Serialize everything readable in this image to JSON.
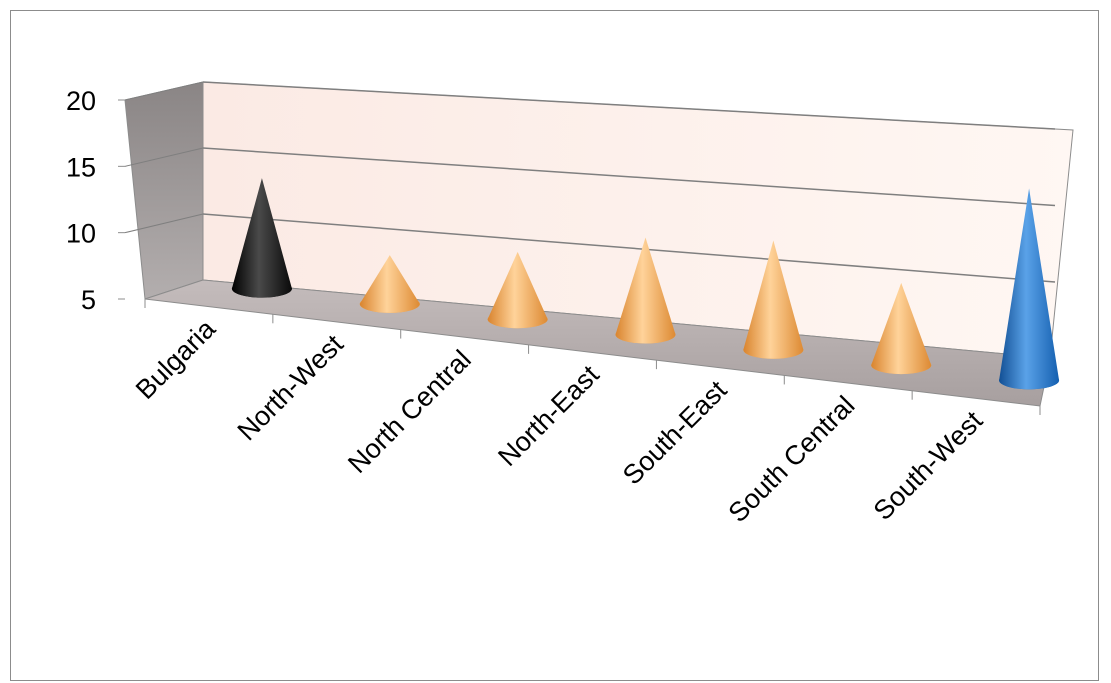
{
  "chart_data": {
    "type": "bar",
    "style": "3d-cone",
    "categories": [
      "Bulgaria",
      "North-West",
      "North Central",
      "North-East",
      "South-East",
      "South Central",
      "South-West"
    ],
    "values": [
      12.5,
      7.5,
      9,
      11.4,
      12.4,
      10.2,
      19.1
    ],
    "colors": [
      "#1a1a1a",
      "#f0a24a",
      "#f0a24a",
      "#f0a24a",
      "#f0a24a",
      "#f0a24a",
      "#1f6fbf"
    ],
    "yticks": [
      5,
      10,
      15,
      20
    ],
    "ylim": [
      5,
      20
    ],
    "title": "",
    "xlabel": "",
    "ylabel": "",
    "grid": true,
    "legend": "none"
  }
}
